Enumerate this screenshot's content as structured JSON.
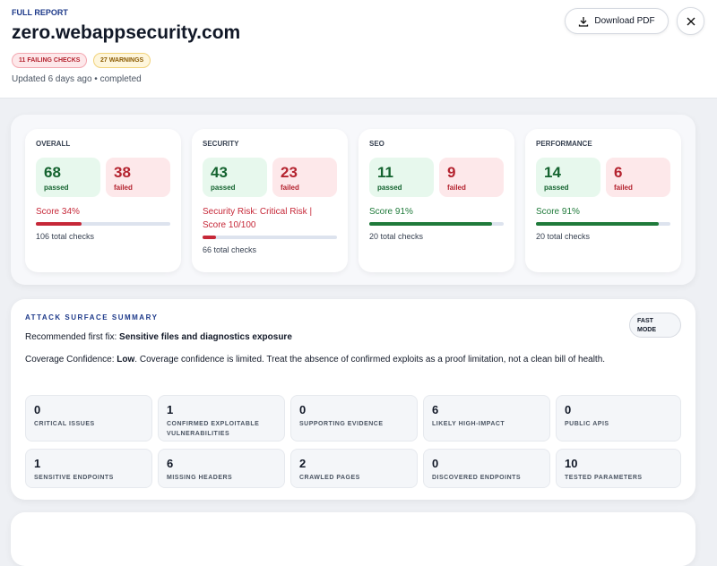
{
  "header": {
    "eyebrow": "FULL REPORT",
    "title": "zero.webappsecurity.com",
    "badges": [
      "11 FAILING CHECKS",
      "27 WARNINGS"
    ],
    "status": "Updated 6 days ago • completed",
    "download": "Download PDF"
  },
  "scores": [
    {
      "label": "OVERALL",
      "passed": 68,
      "passed_label": "passed",
      "failed": 38,
      "failed_label": "failed",
      "score_text": "Score 34%",
      "score": 34,
      "total": "106 total checks",
      "color": "#c62838"
    },
    {
      "label": "SECURITY",
      "passed": 43,
      "passed_label": "passed",
      "failed": 23,
      "failed_label": "failed",
      "score_text": "Security Risk: Critical Risk | Score 10/100",
      "score": 10,
      "total": "66 total checks",
      "color": "#c62838"
    },
    {
      "label": "SEO",
      "passed": 11,
      "passed_label": "passed",
      "failed": 9,
      "failed_label": "failed",
      "score_text": "Score 91%",
      "score": 91,
      "total": "20 total checks",
      "color": "#1f7a3a"
    },
    {
      "label": "PERFORMANCE",
      "passed": 14,
      "passed_label": "passed",
      "failed": 6,
      "failed_label": "failed",
      "score_text": "Score 91%",
      "score": 91,
      "total": "20 total checks",
      "color": "#1f7a3a"
    }
  ],
  "attack": {
    "title": "ATTACK SURFACE SUMMARY",
    "mode": "FAST MODE",
    "fix_label": "Recommended first fix:",
    "fix": "Sensitive files and diagnostics exposure",
    "confidence_label": "Coverage Confidence:",
    "confidence": "Low",
    "confidence_text": ". Coverage confidence is limited. Treat the absence of confirmed exploits as a proof limitation, not a clean bill of health.",
    "stats": [
      {
        "value": 0,
        "label": "CRITICAL ISSUES"
      },
      {
        "value": 1,
        "label": "CONFIRMED EXPLOITABLE VULNERABILITIES"
      },
      {
        "value": 0,
        "label": "SUPPORTING EVIDENCE"
      },
      {
        "value": 6,
        "label": "LIKELY HIGH-IMPACT"
      },
      {
        "value": 0,
        "label": "PUBLIC APIS"
      },
      {
        "value": 1,
        "label": "SENSITIVE ENDPOINTS"
      },
      {
        "value": 6,
        "label": "MISSING HEADERS"
      },
      {
        "value": 2,
        "label": "CRAWLED PAGES"
      },
      {
        "value": 0,
        "label": "DISCOVERED ENDPOINTS"
      },
      {
        "value": 10,
        "label": "TESTED PARAMETERS"
      }
    ]
  }
}
